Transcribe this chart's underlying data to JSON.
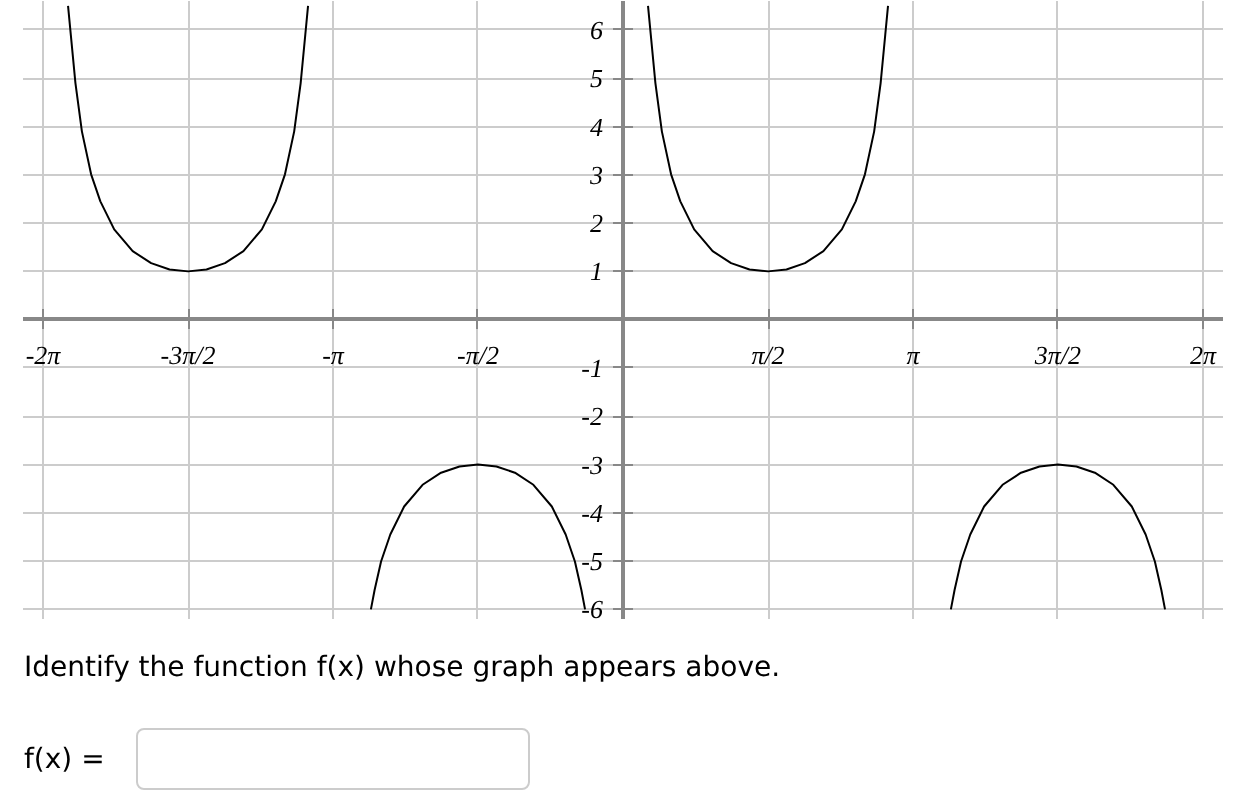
{
  "chart_data": {
    "type": "line",
    "xlim": [
      -6.5,
      6.5
    ],
    "ylim": [
      -6.2,
      6.6
    ],
    "xticks": [
      {
        "value": -6.283,
        "label": "-2π"
      },
      {
        "value": -4.712,
        "label": "-3π/2"
      },
      {
        "value": -3.142,
        "label": "-π"
      },
      {
        "value": -1.571,
        "label": "-π/2"
      },
      {
        "value": 1.571,
        "label": "π/2"
      },
      {
        "value": 3.142,
        "label": "π"
      },
      {
        "value": 4.712,
        "label": "3π/2"
      },
      {
        "value": 6.283,
        "label": "2π"
      }
    ],
    "yticks": [
      -6,
      -5,
      -4,
      -3,
      -2,
      -1,
      1,
      2,
      3,
      4,
      5,
      6
    ],
    "grid": true,
    "series": [
      {
        "color": "#000000",
        "x": [
          -6.012,
          -5.982,
          -5.932,
          -5.862,
          -5.762,
          -5.662,
          -5.512,
          -5.312,
          -5.112,
          -4.912,
          -4.712,
          -4.512,
          -4.312,
          -4.112,
          -3.912,
          -3.762,
          -3.662,
          -3.562,
          -3.492,
          -3.442,
          -3.412
        ],
        "values": [
          6.5,
          5.9,
          4.9,
          3.9,
          3.01,
          2.45,
          1.87,
          1.42,
          1.17,
          1.04,
          1.0,
          1.04,
          1.17,
          1.42,
          1.87,
          2.45,
          3.01,
          3.9,
          4.9,
          5.9,
          6.5
        ]
      },
      {
        "color": "#000000",
        "x": [
          -2.731,
          -2.691,
          -2.621,
          -2.521,
          -2.371,
          -2.171,
          -1.971,
          -1.771,
          -1.571,
          -1.371,
          -1.171,
          -0.971,
          -0.771,
          -0.621,
          -0.521,
          -0.451,
          -0.411
        ],
        "values": [
          -6.0,
          -5.6,
          -5.01,
          -4.45,
          -3.87,
          -3.42,
          -3.17,
          -3.04,
          -3.0,
          -3.04,
          -3.17,
          -3.42,
          -3.87,
          -4.45,
          -5.01,
          -5.6,
          -6.0
        ]
      },
      {
        "color": "#000000",
        "x": [
          0.271,
          0.301,
          0.351,
          0.421,
          0.521,
          0.621,
          0.771,
          0.971,
          1.171,
          1.371,
          1.571,
          1.771,
          1.971,
          2.171,
          2.371,
          2.521,
          2.621,
          2.721,
          2.791,
          2.841,
          2.871
        ],
        "values": [
          6.5,
          5.9,
          4.9,
          3.9,
          3.01,
          2.45,
          1.87,
          1.42,
          1.17,
          1.04,
          1.0,
          1.04,
          1.17,
          1.42,
          1.87,
          2.45,
          3.01,
          3.9,
          4.9,
          5.9,
          6.5
        ]
      },
      {
        "color": "#000000",
        "x": [
          3.552,
          3.592,
          3.662,
          3.762,
          3.912,
          4.112,
          4.312,
          4.512,
          4.712,
          4.912,
          5.112,
          5.312,
          5.512,
          5.662,
          5.762,
          5.832,
          5.872
        ],
        "values": [
          -6.0,
          -5.6,
          -5.01,
          -4.45,
          -3.87,
          -3.42,
          -3.17,
          -3.04,
          -3.0,
          -3.04,
          -3.17,
          -3.42,
          -3.87,
          -4.45,
          -5.01,
          -5.6,
          -6.0
        ]
      }
    ],
    "annotations": [
      "Identify the function f(x) whose graph appears above.",
      "f(x) ="
    ]
  }
}
